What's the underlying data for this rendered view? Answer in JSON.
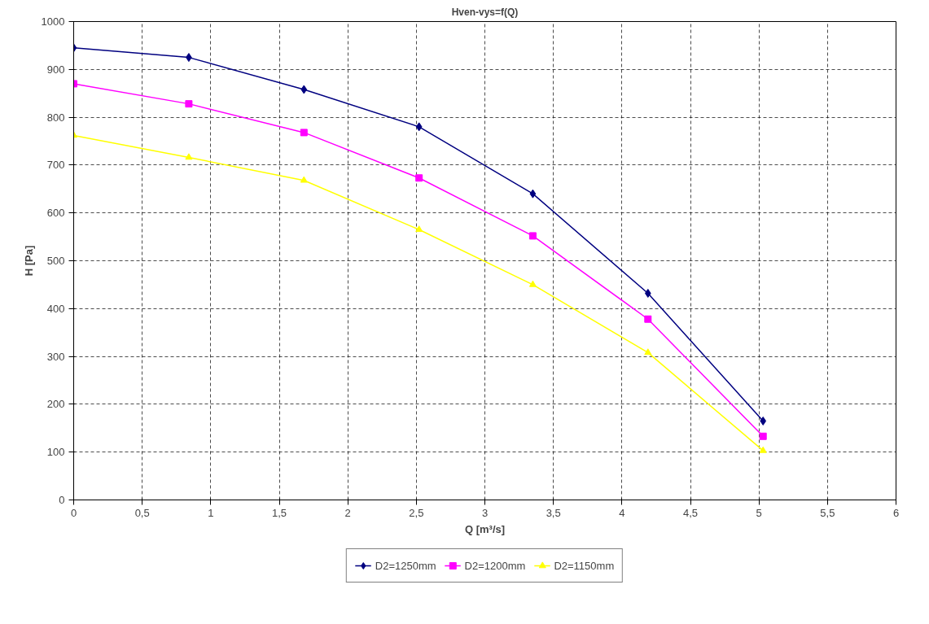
{
  "chart_data": {
    "type": "line",
    "title": "Hven-vys=f(Q)",
    "xlabel": "Q [m³/s]",
    "ylabel": "H [Pa]",
    "x": [
      0,
      0.84,
      1.68,
      2.52,
      3.35,
      4.19,
      5.03
    ],
    "series": [
      {
        "name": "D2=1250mm",
        "color": "#000080",
        "marker": "diamond",
        "values": [
          945,
          925,
          858,
          780,
          640,
          432,
          165
        ]
      },
      {
        "name": "D2=1200mm",
        "color": "#ff00ff",
        "marker": "square",
        "values": [
          870,
          828,
          768,
          673,
          552,
          378,
          133
        ]
      },
      {
        "name": "D2=1150mm",
        "color": "#ffff00",
        "marker": "triangle",
        "values": [
          762,
          716,
          668,
          565,
          450,
          308,
          103
        ]
      }
    ],
    "xlim": [
      0,
      6
    ],
    "ylim": [
      0,
      1000
    ],
    "xticks": [
      0,
      {
        "value": 0.5,
        "label": "0,5"
      },
      1,
      {
        "value": 1.5,
        "label": "1,5"
      },
      2,
      {
        "value": 2.5,
        "label": "2,5"
      },
      3,
      {
        "value": 3.5,
        "label": "3,5"
      },
      4,
      {
        "value": 4.5,
        "label": "4,5"
      },
      5,
      {
        "value": 5.5,
        "label": "5,5"
      },
      6
    ],
    "yticks": [
      0,
      100,
      200,
      300,
      400,
      500,
      600,
      700,
      800,
      900,
      1000
    ],
    "grid": true,
    "legend": "bottom",
    "line_style": "solid"
  }
}
